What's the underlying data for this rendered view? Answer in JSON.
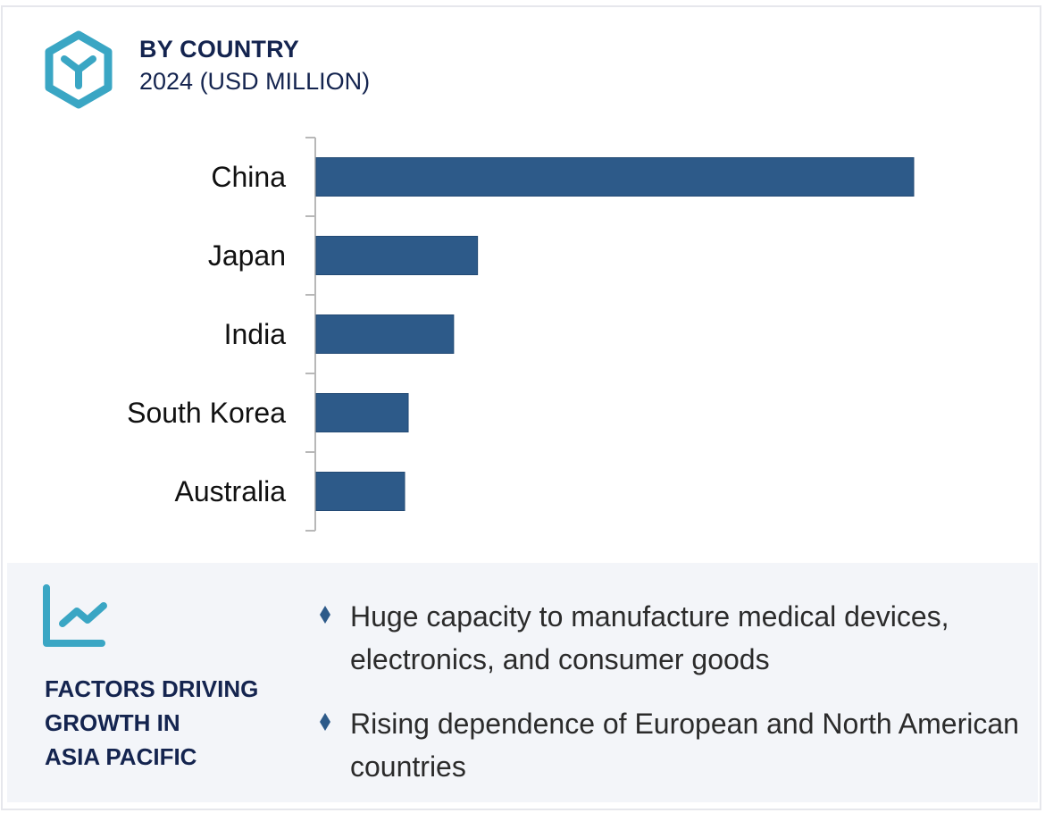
{
  "header": {
    "title": "BY COUNTRY",
    "subtitle": "2024 (USD MILLION)",
    "icon": "hexagon-y-icon"
  },
  "colors": {
    "accent": "#3aa6c4",
    "bar": "#2d5a89",
    "heading": "#14244f",
    "panel_bg": "#f3f5f9"
  },
  "chart_data": {
    "type": "bar",
    "orientation": "horizontal",
    "title": "BY COUNTRY",
    "subtitle": "2024 (USD MILLION)",
    "categories": [
      "China",
      "Japan",
      "India",
      "South Korea",
      "Australia"
    ],
    "values": [
      100,
      27,
      23,
      15.4,
      14.8
    ],
    "value_note": "relative scale (no values labeled)",
    "xlabel": "",
    "ylabel": "",
    "xlim": [
      0,
      100
    ],
    "grid": false,
    "legend": "none"
  },
  "factors": {
    "icon": "trend-chart-icon",
    "title_lines": [
      "FACTORS DRIVING",
      "GROWTH IN",
      "ASIA PACIFIC"
    ],
    "bullets": [
      "Huge capacity to manufacture medical devices, electronics, and consumer goods",
      "Rising dependence of European and North American countries"
    ]
  }
}
